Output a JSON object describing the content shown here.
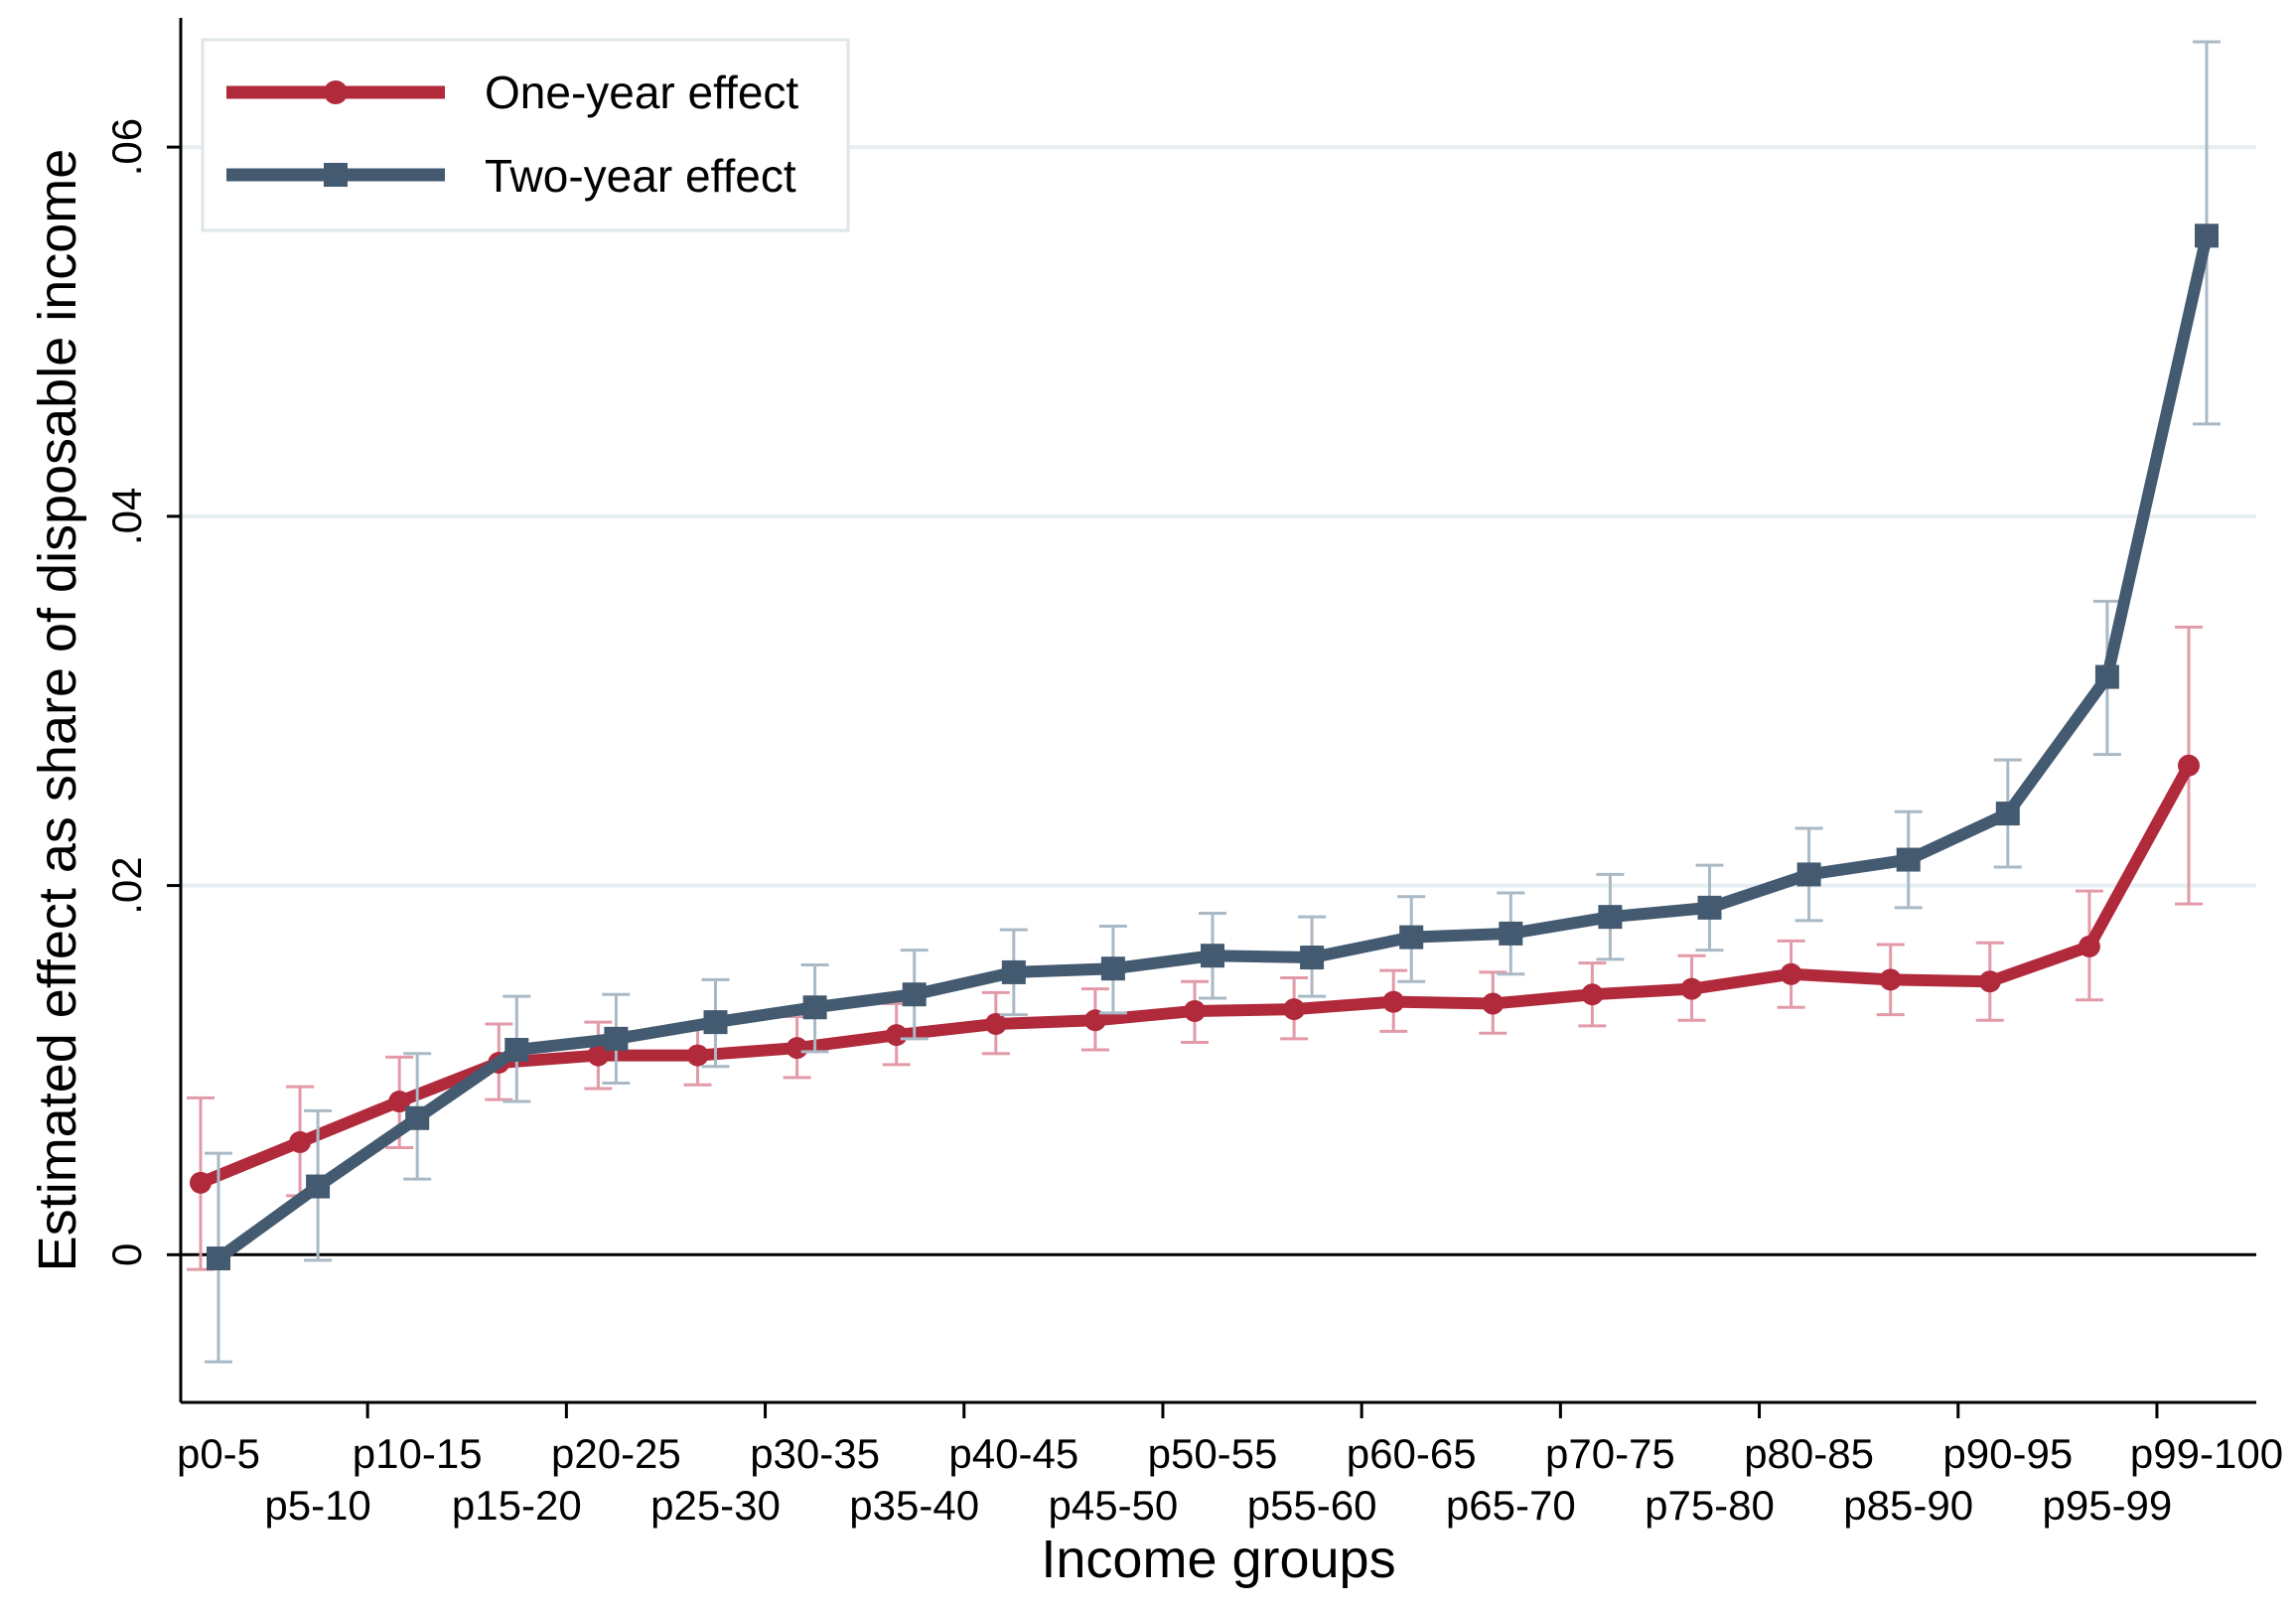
{
  "chart_data": {
    "type": "line",
    "title": "",
    "xlabel": "Income groups",
    "ylabel": "Estimated effect as share of disposable income",
    "ylim": [
      -0.008,
      0.067
    ],
    "yticks": [
      0,
      0.02,
      0.04,
      0.06
    ],
    "ytick_labels": [
      "0",
      ".02",
      ".04",
      ".06"
    ],
    "grid": true,
    "legend_position": "top-left",
    "categories": [
      "p0-5",
      "p5-10",
      "p10-15",
      "p15-20",
      "p20-25",
      "p25-30",
      "p30-35",
      "p35-40",
      "p40-45",
      "p45-50",
      "p50-55",
      "p55-60",
      "p60-65",
      "p65-70",
      "p70-75",
      "p75-80",
      "p80-85",
      "p85-90",
      "p90-95",
      "p95-99",
      "p99-100"
    ],
    "series": [
      {
        "name": "One-year effect",
        "color": "#b12a3c",
        "error_color": "#e39aa8",
        "marker": "circle",
        "values": [
          0.0039,
          0.0061,
          0.0083,
          0.0104,
          0.0108,
          0.0108,
          0.0112,
          0.0119,
          0.0125,
          0.0127,
          0.0132,
          0.0133,
          0.0137,
          0.0136,
          0.0141,
          0.0144,
          0.0152,
          0.0149,
          0.0148,
          0.0167,
          0.0265
        ],
        "lower": [
          -0.0008,
          0.0032,
          0.0058,
          0.0084,
          0.009,
          0.0092,
          0.0096,
          0.0103,
          0.0109,
          0.0111,
          0.0115,
          0.0117,
          0.0121,
          0.012,
          0.0124,
          0.0127,
          0.0134,
          0.013,
          0.0127,
          0.0138,
          0.019
        ],
        "upper": [
          0.0085,
          0.0091,
          0.0107,
          0.0125,
          0.0126,
          0.0125,
          0.0129,
          0.0136,
          0.0142,
          0.0144,
          0.0148,
          0.015,
          0.0154,
          0.0153,
          0.0158,
          0.0162,
          0.017,
          0.0168,
          0.0169,
          0.0197,
          0.034
        ]
      },
      {
        "name": "Two-year effect",
        "color": "#435a70",
        "error_color": "#a9b9c5",
        "marker": "square",
        "values": [
          -0.0002,
          0.0037,
          0.0074,
          0.0111,
          0.0117,
          0.0126,
          0.0134,
          0.0141,
          0.0153,
          0.0155,
          0.0162,
          0.0161,
          0.0172,
          0.0174,
          0.0183,
          0.0188,
          0.0206,
          0.0214,
          0.0239,
          0.0313,
          0.0552
        ],
        "lower": [
          -0.0058,
          -0.0003,
          0.0041,
          0.0083,
          0.0093,
          0.0102,
          0.011,
          0.0117,
          0.013,
          0.0131,
          0.0139,
          0.014,
          0.0148,
          0.0152,
          0.016,
          0.0165,
          0.0181,
          0.0188,
          0.021,
          0.0271,
          0.045
        ],
        "upper": [
          0.0055,
          0.0078,
          0.0109,
          0.014,
          0.0141,
          0.0149,
          0.0157,
          0.0165,
          0.0176,
          0.0178,
          0.0185,
          0.0183,
          0.0194,
          0.0196,
          0.0206,
          0.0211,
          0.0231,
          0.024,
          0.0268,
          0.0354,
          0.0657
        ]
      }
    ]
  }
}
